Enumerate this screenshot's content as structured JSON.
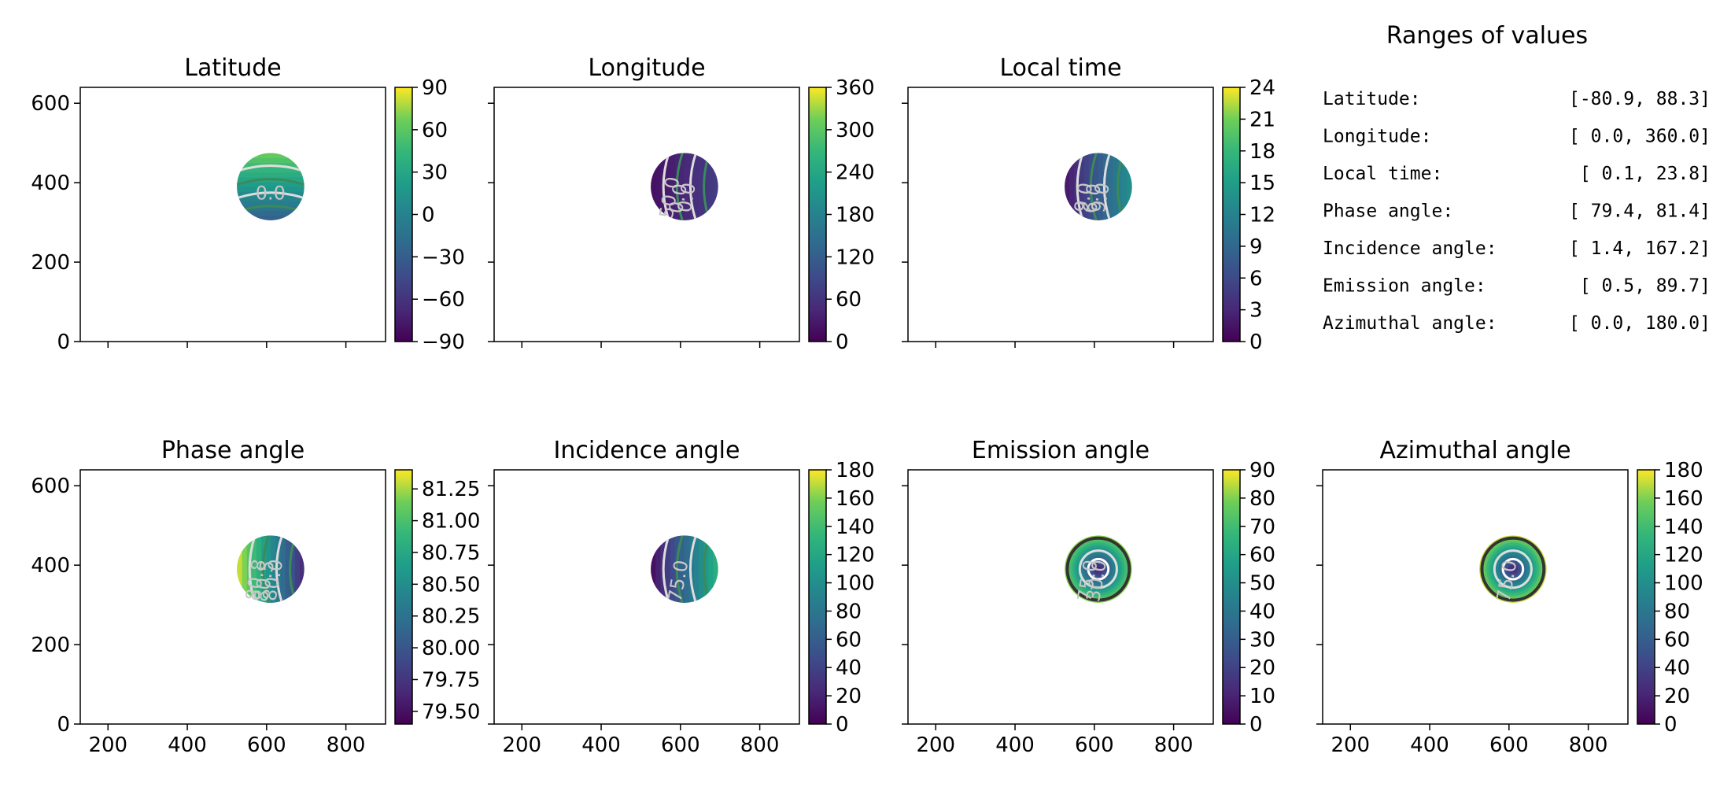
{
  "figure": {
    "ranges_title": "Ranges of values",
    "ranges": [
      {
        "label": "Latitude:",
        "value": "[-80.9,  88.3]"
      },
      {
        "label": "Longitude:",
        "value": "[  0.0, 360.0]"
      },
      {
        "label": "Local time:",
        "value": "[  0.1,  23.8]"
      },
      {
        "label": "Phase angle:",
        "value": "[ 79.4,  81.4]"
      },
      {
        "label": "Incidence angle:",
        "value": "[  1.4, 167.2]"
      },
      {
        "label": "Emission angle:",
        "value": "[  0.5,  89.7]"
      },
      {
        "label": "Azimuthal angle:",
        "value": "[  0.0, 180.0]"
      }
    ]
  },
  "chart_data": [
    {
      "type": "heatmap",
      "title": "Latitude",
      "x_ticks": [
        200,
        400,
        600,
        800
      ],
      "y_ticks": [
        0,
        200,
        400,
        600
      ],
      "xlim": [
        130,
        900
      ],
      "ylim": [
        0,
        640
      ],
      "show_x_ticklabels": false,
      "show_y_ticklabels": true,
      "disk": {
        "cx": 610,
        "cy": 390,
        "r": 85
      },
      "colorbar": {
        "min": -90,
        "max": 90,
        "ticks": [
          -90,
          -60,
          -30,
          0,
          30,
          60,
          90
        ],
        "tick_labels": [
          "−90",
          "−60",
          "−30",
          "0",
          "30",
          "60",
          "90"
        ]
      },
      "contour_labels": [
        "0.0"
      ],
      "colormap": "viridis"
    },
    {
      "type": "heatmap",
      "title": "Longitude",
      "x_ticks": [
        200,
        400,
        600,
        800
      ],
      "y_ticks": [
        0,
        200,
        400,
        600
      ],
      "xlim": [
        130,
        900
      ],
      "ylim": [
        0,
        640
      ],
      "show_x_ticklabels": false,
      "show_y_ticklabels": false,
      "disk": {
        "cx": 610,
        "cy": 390,
        "r": 85
      },
      "colorbar": {
        "min": 0,
        "max": 360,
        "ticks": [
          0,
          60,
          120,
          180,
          240,
          300,
          360
        ],
        "tick_labels": [
          "0",
          "60",
          "120",
          "180",
          "240",
          "300",
          "360"
        ]
      },
      "contour_labels": [
        "50.0",
        "0.0",
        "0.0"
      ],
      "colormap": "viridis"
    },
    {
      "type": "heatmap",
      "title": "Local time",
      "x_ticks": [
        200,
        400,
        600,
        800
      ],
      "y_ticks": [
        0,
        200,
        400,
        600
      ],
      "xlim": [
        130,
        900
      ],
      "ylim": [
        0,
        640
      ],
      "show_x_ticklabels": false,
      "show_y_ticklabels": false,
      "disk": {
        "cx": 610,
        "cy": 390,
        "r": 85
      },
      "colorbar": {
        "min": 0,
        "max": 24,
        "ticks": [
          0,
          3,
          6,
          9,
          12,
          15,
          18,
          21,
          24
        ],
        "tick_labels": [
          "0",
          "3",
          "6",
          "9",
          "12",
          "15",
          "18",
          "21",
          "24"
        ]
      },
      "contour_labels": [
        "9.0",
        "6.0",
        "9.0"
      ],
      "colormap": "viridis"
    },
    {
      "type": "heatmap",
      "title": "Phase angle",
      "x_ticks": [
        200,
        400,
        600,
        800
      ],
      "y_ticks": [
        0,
        200,
        400,
        600
      ],
      "xlim": [
        130,
        900
      ],
      "ylim": [
        0,
        640
      ],
      "show_x_ticklabels": true,
      "show_y_ticklabels": true,
      "disk": {
        "cx": 610,
        "cy": 390,
        "r": 85
      },
      "colorbar": {
        "min": 79.4,
        "max": 81.4,
        "ticks": [
          79.5,
          79.75,
          80.0,
          80.25,
          80.5,
          80.75,
          81.0,
          81.25
        ],
        "tick_labels": [
          "79.50",
          "79.75",
          "80.00",
          "80.25",
          "80.50",
          "80.75",
          "81.00",
          "81.25"
        ]
      },
      "contour_labels": [
        "80.8",
        "80.5",
        "80.0"
      ],
      "colormap": "viridis"
    },
    {
      "type": "heatmap",
      "title": "Incidence angle",
      "x_ticks": [
        200,
        400,
        600,
        800
      ],
      "y_ticks": [
        0,
        200,
        400,
        600
      ],
      "xlim": [
        130,
        900
      ],
      "ylim": [
        0,
        640
      ],
      "show_x_ticklabels": true,
      "show_y_ticklabels": false,
      "disk": {
        "cx": 610,
        "cy": 390,
        "r": 85
      },
      "colorbar": {
        "min": 0,
        "max": 180,
        "ticks": [
          0,
          20,
          40,
          60,
          80,
          100,
          120,
          140,
          160,
          180
        ],
        "tick_labels": [
          "0",
          "20",
          "40",
          "60",
          "80",
          "100",
          "120",
          "140",
          "160",
          "180"
        ]
      },
      "contour_labels": [
        "75.0"
      ],
      "colormap": "viridis"
    },
    {
      "type": "heatmap",
      "title": "Emission angle",
      "x_ticks": [
        200,
        400,
        600,
        800
      ],
      "y_ticks": [
        0,
        200,
        400,
        600
      ],
      "xlim": [
        130,
        900
      ],
      "ylim": [
        0,
        640
      ],
      "show_x_ticklabels": true,
      "show_y_ticklabels": false,
      "disk": {
        "cx": 610,
        "cy": 390,
        "r": 85
      },
      "colorbar": {
        "min": 0,
        "max": 90,
        "ticks": [
          0,
          10,
          20,
          30,
          40,
          50,
          60,
          70,
          80,
          90
        ],
        "tick_labels": [
          "0",
          "10",
          "20",
          "30",
          "40",
          "50",
          "60",
          "70",
          "80",
          "90"
        ]
      },
      "contour_labels": [
        "75.0",
        "30.0"
      ],
      "colormap": "viridis"
    },
    {
      "type": "heatmap",
      "title": "Azimuthal angle",
      "x_ticks": [
        200,
        400,
        600,
        800
      ],
      "y_ticks": [
        0,
        200,
        400,
        600
      ],
      "xlim": [
        130,
        900
      ],
      "ylim": [
        0,
        640
      ],
      "show_x_ticklabels": true,
      "show_y_ticklabels": false,
      "disk": {
        "cx": 610,
        "cy": 390,
        "r": 85
      },
      "colorbar": {
        "min": 0,
        "max": 180,
        "ticks": [
          0,
          20,
          40,
          60,
          80,
          100,
          120,
          140,
          160,
          180
        ],
        "tick_labels": [
          "0",
          "20",
          "40",
          "60",
          "80",
          "100",
          "120",
          "140",
          "160",
          "180"
        ]
      },
      "contour_labels": [
        "75.0"
      ],
      "colormap": "viridis"
    }
  ]
}
